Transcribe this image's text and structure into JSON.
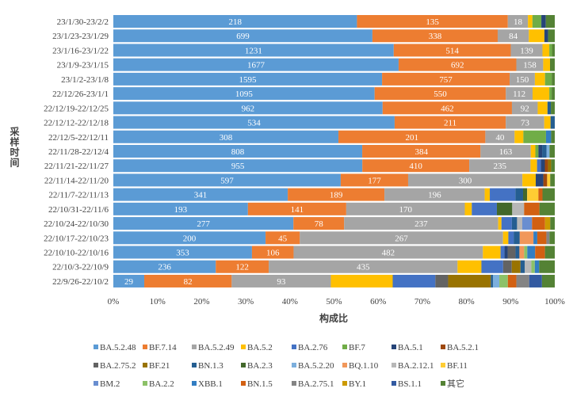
{
  "chart_data": {
    "type": "bar",
    "orientation": "horizontal",
    "stacking": "percent",
    "xlabel": "构成比",
    "ylabel": "采样时间",
    "xlim": [
      0,
      100
    ],
    "xticks": [
      "0%",
      "10%",
      "20%",
      "30%",
      "40%",
      "50%",
      "60%",
      "70%",
      "80%",
      "90%",
      "100%"
    ],
    "legend_position": "bottom",
    "series": [
      {
        "name": "BA.5.2.48",
        "color": "#5B9BD5"
      },
      {
        "name": "BF.7.14",
        "color": "#ED7D31"
      },
      {
        "name": "BA.5.2.49",
        "color": "#A5A5A5"
      },
      {
        "name": "BA.5.2",
        "color": "#FFC000"
      },
      {
        "name": "BA.2.76",
        "color": "#4472C4"
      },
      {
        "name": "BF.7",
        "color": "#70AD47"
      },
      {
        "name": "BA.5.1",
        "color": "#264478"
      },
      {
        "name": "BA.5.2.1",
        "color": "#9E480E"
      },
      {
        "name": "BA.2.75.2",
        "color": "#636363"
      },
      {
        "name": "BF.21",
        "color": "#997300"
      },
      {
        "name": "BN.1.3",
        "color": "#255E91"
      },
      {
        "name": "BA.2.3",
        "color": "#43682B"
      },
      {
        "name": "BA.5.2.20",
        "color": "#7CAFDD"
      },
      {
        "name": "BQ.1.10",
        "color": "#F1975A"
      },
      {
        "name": "BA.2.12.1",
        "color": "#B7B7B7"
      },
      {
        "name": "BF.11",
        "color": "#FFCD33"
      },
      {
        "name": "BM.2",
        "color": "#698ED0"
      },
      {
        "name": "BA.2.2",
        "color": "#8CC168"
      },
      {
        "name": "XBB.1",
        "color": "#327DC2"
      },
      {
        "name": "BN.1.5",
        "color": "#D26012"
      },
      {
        "name": "BA.2.75.1",
        "color": "#848484"
      },
      {
        "name": "BY.1",
        "color": "#CC9A00"
      },
      {
        "name": "BS.1.1",
        "color": "#335AA1"
      },
      {
        "name": "其它",
        "color": "#548235"
      }
    ],
    "rows": [
      {
        "category": "23/1/30-23/2/2",
        "values": {
          "BA.5.2.48": 218,
          "BF.7.14": 135,
          "BA.5.2.49": 18,
          "BA.5.2": 4,
          "BF.7": 8,
          "BA.5.1": 4,
          "其它": 8
        }
      },
      {
        "category": "23/1/23-23/1/29",
        "values": {
          "BA.5.2.48": 699,
          "BF.7.14": 338,
          "BA.5.2.49": 84,
          "BA.5.2": 42,
          "BA.5.1": 10,
          "其它": 18
        }
      },
      {
        "category": "23/1/16-23/1/22",
        "values": {
          "BA.5.2.48": 1231,
          "BF.7.14": 514,
          "BA.5.2.49": 139,
          "BA.5.2": 30,
          "BF.7": 12,
          "其它": 12
        }
      },
      {
        "category": "23/1/9-23/1/15",
        "values": {
          "BA.5.2.48": 1677,
          "BF.7.14": 692,
          "BA.5.2.49": 158,
          "BA.5.2": 40,
          "其它": 28
        }
      },
      {
        "category": "23/1/2-23/1/8",
        "values": {
          "BA.5.2.48": 1595,
          "BF.7.14": 757,
          "BA.5.2.49": 150,
          "BA.5.2": 60,
          "BF.7": 40,
          "其它": 18
        }
      },
      {
        "category": "22/12/26-23/1/1",
        "values": {
          "BA.5.2.48": 1095,
          "BF.7.14": 550,
          "BA.5.2.49": 112,
          "BA.5.2": 70,
          "BF.7": 10,
          "其它": 13
        }
      },
      {
        "category": "22/12/19-22/12/25",
        "values": {
          "BA.5.2.48": 962,
          "BF.7.14": 462,
          "BA.5.2.49": 92,
          "BA.5.2": 35,
          "BN.1.3": 12,
          "其它": 14
        }
      },
      {
        "category": "22/12/12-22/12/18",
        "values": {
          "BA.5.2.48": 534,
          "BF.7.14": 211,
          "BA.5.2.49": 73,
          "BA.5.2": 12,
          "BN.1.3": 8
        }
      },
      {
        "category": "22/12/5-22/12/11",
        "values": {
          "BA.5.2.48": 308,
          "BF.7.14": 201,
          "BA.5.2.49": 40,
          "BA.5.2": 12,
          "BF.7": 31,
          "XBB.1": 7,
          "其它": 5
        }
      },
      {
        "category": "22/11/28-22/12/4",
        "values": {
          "BA.5.2.48": 808,
          "BF.7.14": 384,
          "BA.5.2.49": 163,
          "BA.5.2": 15,
          "BF.7": 10,
          "BA.5.1": 12,
          "BA.5.2.20": 10,
          "BN.1.3": 14,
          "其它": 17
        }
      },
      {
        "category": "22/11/21-22/11/27",
        "values": {
          "BA.5.2.48": 955,
          "BF.7.14": 410,
          "BA.5.2.49": 235,
          "BA.5.2": 25,
          "BA.2.76": 15,
          "BA.5.1": 15,
          "BA.5.2.1": 12,
          "BF.21": 12,
          "其它": 14
        }
      },
      {
        "category": "22/11/14-22/11/20",
        "values": {
          "BA.5.2.48": 597,
          "BF.7.14": 177,
          "BA.5.2.49": 300,
          "BA.5.2": 35,
          "BA.5.1": 20,
          "BA.5.2.1": 10,
          "BF.11": 8,
          "其它": 12
        }
      },
      {
        "category": "22/11/7-22/11/13",
        "values": {
          "BA.5.2.48": 341,
          "BF.7.14": 189,
          "BA.5.2.49": 196,
          "BA.5.2": 10,
          "BA.2.76": 50,
          "BN.1.3": 15,
          "BN.1.5": 8,
          "BA.2.3": 8,
          "BF.11": 22,
          "其它": 24
        }
      },
      {
        "category": "22/10/31-22/11/6",
        "values": {
          "BA.5.2.48": 193,
          "BF.7.14": 141,
          "BA.5.2.49": 170,
          "BA.5.2": 10,
          "BA.2.76": 36,
          "BN.1.5": 22,
          "BA.2.3": 22,
          "BA.2.12.1": 17,
          "其它": 22
        }
      },
      {
        "category": "22/10/24-22/10/30",
        "values": {
          "BA.5.2.48": 277,
          "BF.7.14": 78,
          "BA.5.2.49": 237,
          "BA.5.2": 5,
          "BA.2.76": 16,
          "BN.1.3": 8,
          "BN.1.5": 20,
          "BA.2.12.1": 8,
          "BM.2": 15,
          "BY.1": 8,
          "其它": 7
        }
      },
      {
        "category": "22/10/17-22/10/23",
        "values": {
          "BA.5.2.48": 200,
          "BF.7.14": 45,
          "BA.5.2.49": 267,
          "BA.5.2": 7,
          "BA.2.76": 7,
          "BN.1.3": 8,
          "BN.1.5": 12,
          "BQ.1.10": 18,
          "BA.2.75.1": 4,
          "XBB.1": 5,
          "其它": 7
        }
      },
      {
        "category": "22/10/10-22/10/16",
        "values": {
          "BA.5.2.48": 353,
          "BF.7.14": 106,
          "BA.5.2.49": 482,
          "BA.5.2": 45,
          "BA.2.76": 10,
          "BN.1.3": 10,
          "BN.1.5": 25,
          "BA.2.75.2": 20,
          "BA.5.1": 8,
          "BQ.1.10": 12,
          "BA.2.2": 8,
          "XBB.1": 20,
          "其它": 25
        }
      },
      {
        "category": "22/10/3-22/10/9",
        "values": {
          "BA.5.2.48": 236,
          "BF.7.14": 122,
          "BA.5.2.49": 435,
          "BA.5.2": 55,
          "BA.2.76": 50,
          "BA.2.2": 8,
          "BA.2.75.2": 20,
          "BF.21": 20,
          "BN.1.3": 10,
          "BA.2.12.1": 15,
          "XBB.1": 10,
          "其它": 36
        }
      },
      {
        "category": "22/9/26-22/10/2",
        "values": {
          "BA.5.2.48": 29,
          "BF.7.14": 82,
          "BA.5.2.49": 93,
          "BA.5.2": 58,
          "BA.2.76": 40,
          "BA.2.2": 8,
          "BN.1.5": 8,
          "BA.2.75.2": 12,
          "BF.21": 40,
          "BN.1.3": 2,
          "BA.5.2.20": 6,
          "BA.2.75.1": 12,
          "BS.1.1": 12,
          "其它": 12
        }
      }
    ],
    "data_labels_on": [
      "BA.5.2.48",
      "BF.7.14",
      "BA.5.2.49"
    ],
    "grid": false
  }
}
